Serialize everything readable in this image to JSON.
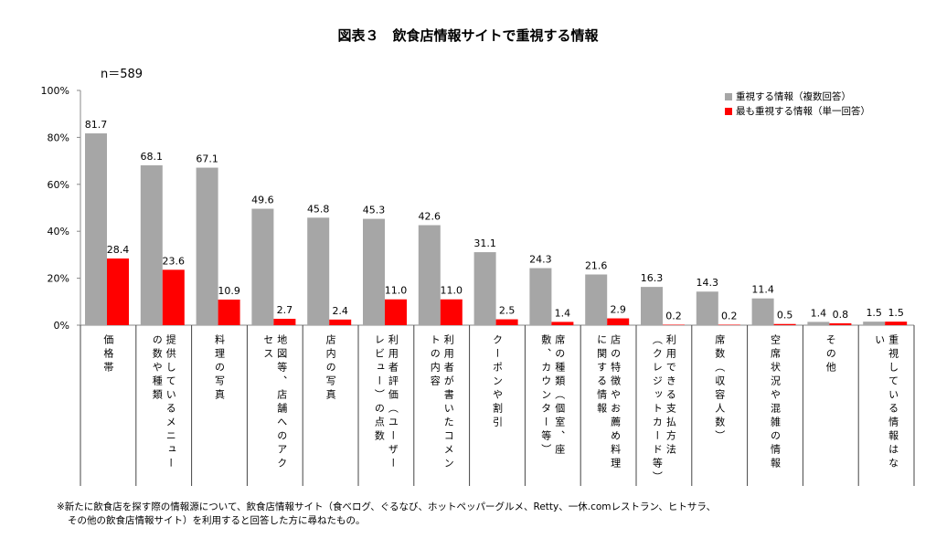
{
  "chart_data": {
    "type": "bar",
    "title": "図表３　飲食店情報サイトで重視する情報",
    "sample_size": "n＝589",
    "ylim": [
      0,
      100
    ],
    "yticks": [
      "0%",
      "20%",
      "40%",
      "60%",
      "80%",
      "100%"
    ],
    "grid": false,
    "legend_position": "top-right",
    "categories": [
      "価格帯",
      "提供しているメニューの数や種類",
      "料理の写真",
      "地図等、店舗へのアクセス",
      "店内の写真",
      "利用者評価（ユーザーレビュー）の点数",
      "利用者が書いたコメントの内容",
      "クーポンや割引",
      "席の種類（個室、座敷、カウンター等）",
      "店の特徴やお薦め料理に関する情報",
      "利用できる支払方法（クレジットカード等）",
      "席数（収容人数）",
      "空席状況や混雑の情報",
      "その他",
      "重視している情報はない"
    ],
    "series": [
      {
        "name": "重視する情報（複数回答）",
        "color": "#a6a6a6",
        "values": [
          81.7,
          68.1,
          67.1,
          49.6,
          45.8,
          45.3,
          42.6,
          31.1,
          24.3,
          21.6,
          16.3,
          14.3,
          11.4,
          1.4,
          1.5
        ]
      },
      {
        "name": "最も重視する情報（単一回答）",
        "color": "#ff0000",
        "values": [
          28.4,
          23.6,
          10.9,
          2.7,
          2.4,
          11.0,
          11.0,
          2.5,
          1.4,
          2.9,
          0.2,
          0.2,
          0.5,
          0.8,
          1.5
        ]
      }
    ]
  },
  "footnote": [
    "※新たに飲食店を探す際の情報源について、飲食店情報サイト（食べログ、ぐるなび、ホットペッパーグルメ、Retty、一休.comレストラン、ヒトサラ、",
    "その他の飲食店情報サイト）を利用すると回答した方に尋ねたもの。"
  ]
}
